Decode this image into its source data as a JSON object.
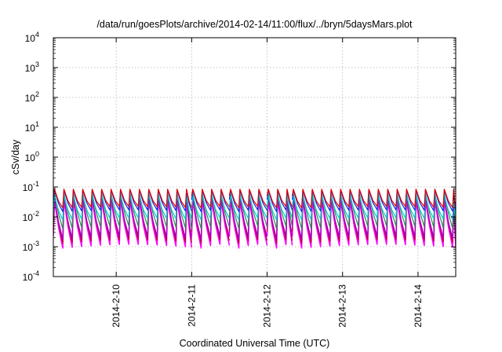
{
  "chart_data": {
    "type": "line",
    "title": "/data/run/goesPlots/archive/2014-02-14/11:00/flux/../bryn/5daysMars.plot",
    "xlabel": "Coordinated Universal Time (UTC)",
    "ylabel": "cSv/day",
    "yscale": "log",
    "ylim": [
      0.0001,
      10000
    ],
    "yticks": [
      {
        "value": 0.0001,
        "base": "10",
        "exp": "-4"
      },
      {
        "value": 0.001,
        "base": "10",
        "exp": "-3"
      },
      {
        "value": 0.01,
        "base": "10",
        "exp": "-2"
      },
      {
        "value": 0.1,
        "base": "10",
        "exp": "-1"
      },
      {
        "value": 1,
        "base": "10",
        "exp": "0"
      },
      {
        "value": 10,
        "base": "10",
        "exp": "1"
      },
      {
        "value": 100,
        "base": "10",
        "exp": "2"
      },
      {
        "value": 1000,
        "base": "10",
        "exp": "3"
      },
      {
        "value": 10000,
        "base": "10",
        "exp": "4"
      }
    ],
    "xlim": [
      "2014-02-09 04:00",
      "2014-02-14 12:00"
    ],
    "xticks": [
      {
        "value": "2014-02-10 00:00",
        "label": "2014-2-10"
      },
      {
        "value": "2014-02-11 00:00",
        "label": "2014-2-11"
      },
      {
        "value": "2014-02-12 00:00",
        "label": "2014-2-12"
      },
      {
        "value": "2014-02-13 00:00",
        "label": "2014-2-13"
      },
      {
        "value": "2014-02-14 00:00",
        "label": "2014-2-14"
      }
    ],
    "grid": true,
    "legend": "none",
    "sawtooth": {
      "cycle_hours": 3.0,
      "segments": [
        {
          "from": "2014-02-09 04:00",
          "to": "2014-02-11 00:00"
        },
        {
          "from": "2014-02-11 00:00",
          "to": "2014-02-11 12:00"
        },
        {
          "from": "2014-02-11 12:00",
          "to": "2014-02-12 00:00"
        },
        {
          "from": "2014-02-12 00:00",
          "to": "2014-02-12 08:00"
        },
        {
          "from": "2014-02-12 08:00",
          "to": "2014-02-14 12:00"
        }
      ]
    },
    "series": [
      {
        "color": "#ff00ff",
        "peak": 0.035,
        "trough": 0.0009
      },
      {
        "color": "#b8002e",
        "peak": 0.045,
        "trough": 0.0013
      },
      {
        "color": "#a000c8",
        "peak": 0.04,
        "trough": 0.0018
      },
      {
        "color": "#2e8b57",
        "peak": 0.06,
        "trough": 0.004
      },
      {
        "color": "#00cccc",
        "peak": 0.05,
        "trough": 0.008
      },
      {
        "color": "#2020e0",
        "peak": 0.08,
        "trough": 0.015
      },
      {
        "color": "#e00000",
        "peak": 0.085,
        "trough": 0.02
      }
    ]
  }
}
